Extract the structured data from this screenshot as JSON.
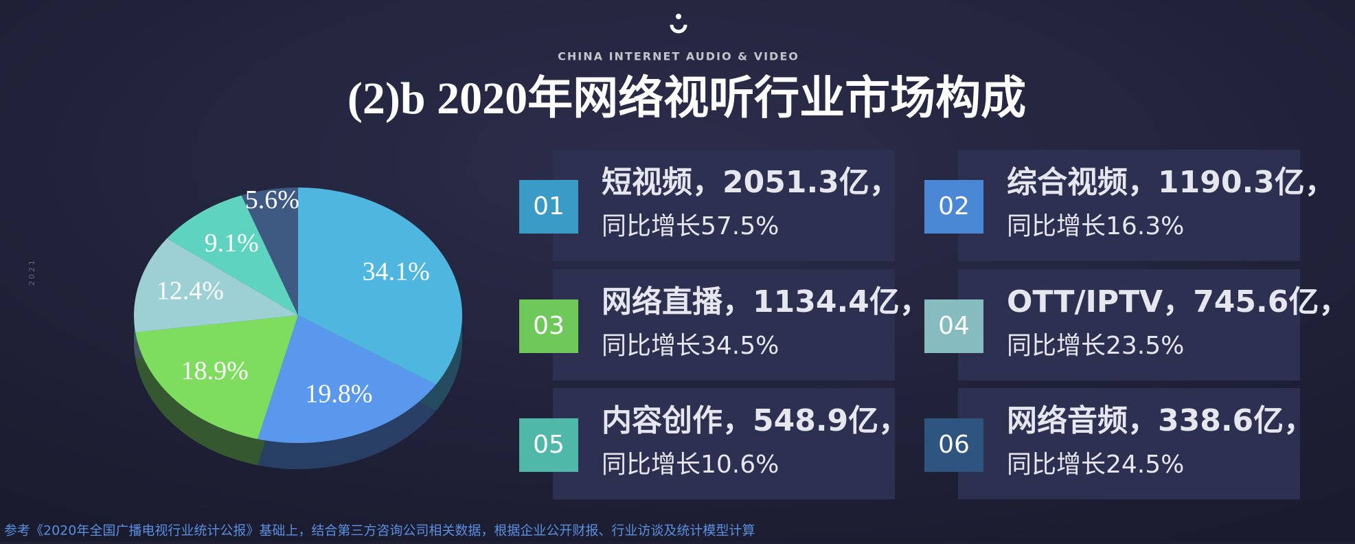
{
  "header": {
    "brand": "CHINA INTERNET AUDIO & VIDEO",
    "title": "(2)b 2020年网络视听行业市场构成",
    "year": "2021"
  },
  "chart_data": {
    "type": "pie",
    "values": [
      34.1,
      19.8,
      18.9,
      12.4,
      9.1,
      5.6
    ],
    "value_labels": [
      "34.1%",
      "19.8%",
      "18.9%",
      "12.4%",
      "9.1%",
      "5.6%"
    ],
    "colors": [
      "#4fb6e0",
      "#5a98ee",
      "#7edc5e",
      "#9dd0d4",
      "#5ed3bf",
      "#3e5a82"
    ]
  },
  "cards": [
    {
      "number": "01",
      "headline": "短视频，2051.3亿，",
      "growth": "同比增长57.5%",
      "color": "#3a9cc6"
    },
    {
      "number": "02",
      "headline": "综合视频，1190.3亿，",
      "growth": "同比增长16.3%",
      "color": "#4a88d6"
    },
    {
      "number": "03",
      "headline": "网络直播，1134.4亿，",
      "growth": "同比增长34.5%",
      "color": "#6fc95a"
    },
    {
      "number": "04",
      "headline": "OTT/IPTV，745.6亿，",
      "growth": "同比增长23.5%",
      "color": "#86bcc0"
    },
    {
      "number": "05",
      "headline": "内容创作，548.9亿，",
      "growth": "同比增长10.6%",
      "color": "#4fb8a8"
    },
    {
      "number": "06",
      "headline": "网络音频，338.6亿，",
      "growth": "同比增长24.5%",
      "color": "#2e5580"
    }
  ],
  "footer": "参考《2020年全国广播电视行业统计公报》基础上，结合第三方咨询公司相关数据，根据企业公开财报、行业访谈及统计模型计算"
}
